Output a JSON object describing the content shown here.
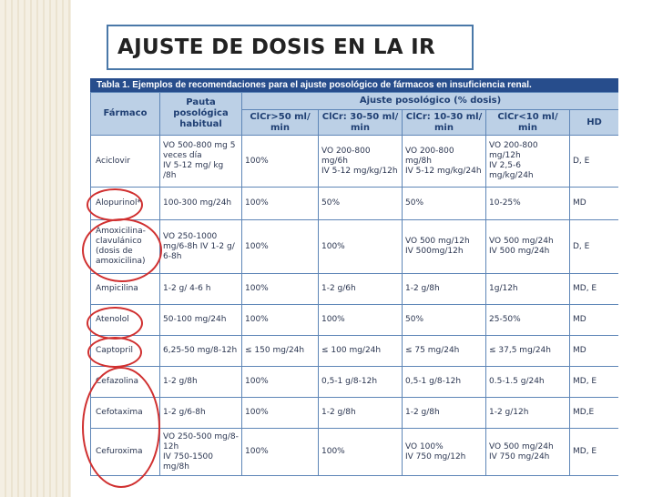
{
  "slide_title": "AJUSTE DE DOSIS EN LA IR",
  "table": {
    "caption": "Tabla 1. Ejemplos de recomendaciones para el ajuste posológico de fármacos en insuficiencia renal.",
    "headers": {
      "farmaco": "Fármaco",
      "pauta": "Pauta posológica habitual",
      "ajuste": "Ajuste posológico (% dosis)",
      "clcr_50": "ClCr>50 ml/ min",
      "clcr_30_50": "ClCr: 30-50 ml/ min",
      "clcr_10_30": "ClCr: 10-30 ml/ min",
      "clcr_10": "ClCr<10 ml/ min",
      "hd": "HD"
    },
    "rows": [
      {
        "drug": "Aciclovir",
        "pauta": "VO 500-800 mg 5 veces día\nIV 5-12 mg/ kg /8h",
        "c50": "100%",
        "c30": "VO 200-800 mg/6h\nIV 5-12 mg/kg/12h",
        "c10": "VO 200-800 mg/8h\nIV 5-12 mg/kg/24h",
        "clt10": "VO 200-800 mg/12h\nIV 2,5-6 mg/kg/24h",
        "hd": "D, E"
      },
      {
        "drug": "Alopurinol*",
        "pauta": "100-300 mg/24h",
        "c50": "100%",
        "c30": "50%",
        "c10": "50%",
        "clt10": "10-25%",
        "hd": "MD"
      },
      {
        "drug": "Amoxicilina-clavulánico (dosis de amoxicilina)",
        "pauta": "VO 250-1000 mg/6-8h IV 1-2 g/ 6-8h",
        "c50": "100%",
        "c30": "100%",
        "c10": "VO 500 mg/12h\nIV 500mg/12h",
        "clt10": "VO 500 mg/24h\nIV 500 mg/24h",
        "hd": "D, E"
      },
      {
        "drug": "Ampicilina",
        "pauta": "1-2 g/ 4-6 h",
        "c50": "100%",
        "c30": "1-2 g/6h",
        "c10": "1-2 g/8h",
        "clt10": "1g/12h",
        "hd": "MD, E"
      },
      {
        "drug": "Atenolol",
        "pauta": "50-100 mg/24h",
        "c50": "100%",
        "c30": "100%",
        "c10": "50%",
        "clt10": "25-50%",
        "hd": "MD"
      },
      {
        "drug": "Captopril",
        "pauta": "6,25-50 mg/8-12h",
        "c50": "≤ 150 mg/24h",
        "c30": "≤ 100 mg/24h",
        "c10": "≤ 75 mg/24h",
        "clt10": "≤ 37,5 mg/24h",
        "hd": "MD"
      },
      {
        "drug": "Cefazolina",
        "pauta": "1-2 g/8h",
        "c50": "100%",
        "c30": "0,5-1 g/8-12h",
        "c10": "0,5-1 g/8-12h",
        "clt10": "0.5-1.5 g/24h",
        "hd": "MD, E"
      },
      {
        "drug": "Cefotaxima",
        "pauta": "1-2 g/6-8h",
        "c50": "100%",
        "c30": "1-2 g/8h",
        "c10": "1-2 g/8h",
        "clt10": "1-2 g/12h",
        "hd": "MD,E"
      },
      {
        "drug": "Cefuroxima",
        "pauta": "VO 250-500 mg/8-12h\nIV 750-1500 mg/8h",
        "c50": "100%",
        "c30": "100%",
        "c10": "VO 100%\nIV 750 mg/12h",
        "clt10": "VO 500 mg/24h\nIV 750 mg/24h",
        "hd": "MD, E"
      }
    ]
  },
  "colors": {
    "caption_bg": "#274d8c",
    "header_bg": "#bcd0e6",
    "grid": "#5e86b7",
    "annotation": "#d03030",
    "title_border": "#4a78a8"
  }
}
